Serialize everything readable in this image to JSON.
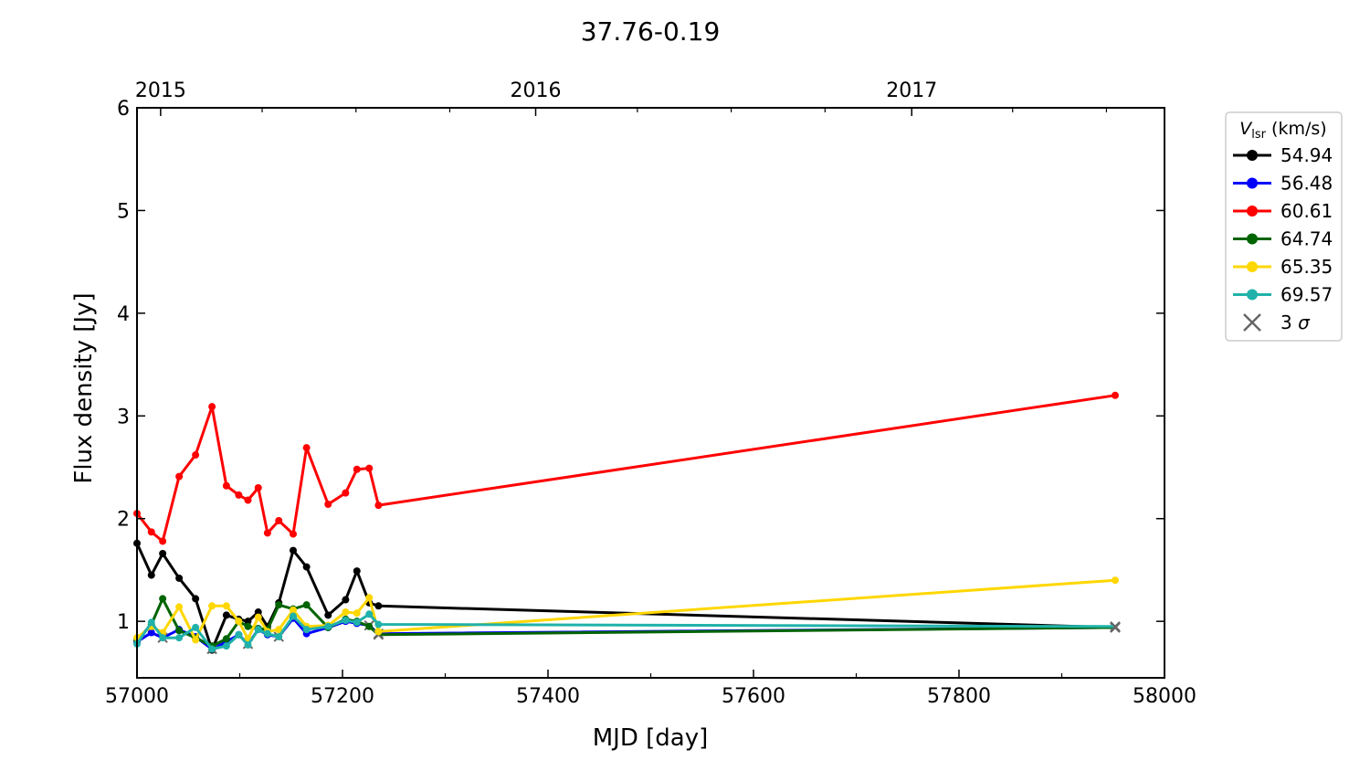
{
  "chart_data": {
    "type": "line",
    "title": "37.76-0.19",
    "xlabel": "MJD [day]",
    "ylabel": "Flux density [Jy]",
    "xlim": [
      57000,
      58000
    ],
    "ylim": [
      0.45,
      6.0
    ],
    "x_ticks": [
      57000,
      57200,
      57400,
      57600,
      57800,
      58000
    ],
    "y_ticks": [
      1,
      2,
      3,
      4,
      5,
      6
    ],
    "top_axis": {
      "ticks": [
        {
          "label": "2015",
          "mjd": 57023
        },
        {
          "label": "2016",
          "mjd": 57388
        },
        {
          "label": "2017",
          "mjd": 57754
        }
      ]
    },
    "grid": false,
    "legend": {
      "title_symbol": "V",
      "title_subscript": "lsr",
      "title_unit": "(km/s)",
      "placement": "right-outside",
      "upper_limit_label_prefix": "3",
      "upper_limit_label_symbol": "σ"
    },
    "series": [
      {
        "name": "54.94",
        "color": "#000000",
        "x": [
          57000,
          57014,
          57025,
          57041,
          57057,
          57073,
          57087,
          57099,
          57108,
          57118,
          57127,
          57138,
          57152,
          57165,
          57186,
          57203,
          57214,
          57226,
          57235,
          57952
        ],
        "y": [
          1.76,
          1.45,
          1.66,
          1.42,
          1.22,
          0.72,
          1.06,
          1.02,
          1.0,
          1.09,
          0.95,
          1.18,
          1.69,
          1.53,
          1.06,
          1.21,
          1.49,
          1.18,
          1.15,
          0.94
        ],
        "upper_limit": [
          false,
          false,
          false,
          false,
          false,
          false,
          false,
          false,
          false,
          false,
          false,
          false,
          false,
          false,
          false,
          false,
          false,
          false,
          false,
          true
        ]
      },
      {
        "name": "56.48",
        "color": "#0000ff",
        "x": [
          57000,
          57014,
          57025,
          57041,
          57057,
          57073,
          57087,
          57099,
          57108,
          57118,
          57127,
          57138,
          57152,
          57165,
          57186,
          57203,
          57214,
          57226,
          57235,
          57952
        ],
        "y": [
          0.8,
          0.89,
          0.84,
          0.92,
          0.85,
          0.73,
          0.8,
          0.87,
          0.78,
          0.92,
          0.87,
          0.85,
          1.03,
          0.88,
          0.94,
          1.0,
          0.98,
          0.96,
          0.88,
          0.94
        ],
        "upper_limit": [
          false,
          false,
          true,
          false,
          false,
          true,
          false,
          false,
          true,
          false,
          false,
          true,
          false,
          false,
          false,
          false,
          false,
          true,
          true,
          true
        ]
      },
      {
        "name": "60.61",
        "color": "#ff0000",
        "x": [
          57000,
          57014,
          57025,
          57041,
          57057,
          57073,
          57087,
          57099,
          57108,
          57118,
          57127,
          57138,
          57152,
          57165,
          57186,
          57203,
          57214,
          57226,
          57235,
          57952
        ],
        "y": [
          2.05,
          1.87,
          1.78,
          2.41,
          2.62,
          3.09,
          2.32,
          2.23,
          2.18,
          2.3,
          1.86,
          1.98,
          1.85,
          2.69,
          2.14,
          2.25,
          2.48,
          2.49,
          2.13,
          3.2
        ],
        "upper_limit": [
          false,
          false,
          false,
          false,
          false,
          false,
          false,
          false,
          false,
          false,
          false,
          false,
          false,
          false,
          false,
          false,
          false,
          false,
          false,
          false
        ]
      },
      {
        "name": "64.74",
        "color": "#006400",
        "x": [
          57000,
          57014,
          57025,
          57041,
          57057,
          57073,
          57087,
          57099,
          57108,
          57118,
          57127,
          57138,
          57152,
          57165,
          57186,
          57203,
          57214,
          57226,
          57235,
          57952
        ],
        "y": [
          0.82,
          0.97,
          1.22,
          0.91,
          0.84,
          0.76,
          0.83,
          1.0,
          0.95,
          0.93,
          0.92,
          1.16,
          1.12,
          1.16,
          0.94,
          1.02,
          1.0,
          0.95,
          0.87,
          0.94
        ],
        "upper_limit": [
          false,
          false,
          false,
          false,
          false,
          false,
          false,
          false,
          false,
          false,
          false,
          false,
          false,
          false,
          false,
          false,
          false,
          false,
          true,
          true
        ]
      },
      {
        "name": "65.35",
        "color": "#ffd700",
        "x": [
          57000,
          57014,
          57025,
          57041,
          57057,
          57073,
          57087,
          57099,
          57108,
          57118,
          57127,
          57138,
          57152,
          57165,
          57186,
          57203,
          57214,
          57226,
          57235,
          57952
        ],
        "y": [
          0.84,
          0.95,
          0.89,
          1.14,
          0.82,
          1.15,
          1.15,
          1.0,
          0.83,
          1.04,
          0.9,
          0.92,
          1.11,
          0.95,
          0.96,
          1.09,
          1.08,
          1.23,
          0.9,
          1.4
        ],
        "upper_limit": [
          false,
          false,
          false,
          false,
          false,
          false,
          false,
          false,
          false,
          false,
          false,
          false,
          false,
          false,
          false,
          false,
          false,
          false,
          false,
          false
        ]
      },
      {
        "name": "69.57",
        "color": "#20b2aa",
        "x": [
          57000,
          57014,
          57025,
          57041,
          57057,
          57073,
          57087,
          57099,
          57108,
          57118,
          57127,
          57138,
          57152,
          57165,
          57186,
          57203,
          57214,
          57226,
          57235,
          57952
        ],
        "y": [
          0.78,
          0.99,
          0.84,
          0.84,
          0.94,
          0.73,
          0.76,
          0.87,
          0.77,
          0.92,
          0.88,
          0.85,
          1.05,
          0.92,
          0.95,
          1.01,
          0.99,
          1.07,
          0.97,
          0.95
        ],
        "upper_limit": [
          false,
          false,
          false,
          false,
          false,
          false,
          false,
          false,
          false,
          false,
          false,
          false,
          false,
          false,
          false,
          false,
          false,
          false,
          false,
          true
        ]
      }
    ]
  }
}
